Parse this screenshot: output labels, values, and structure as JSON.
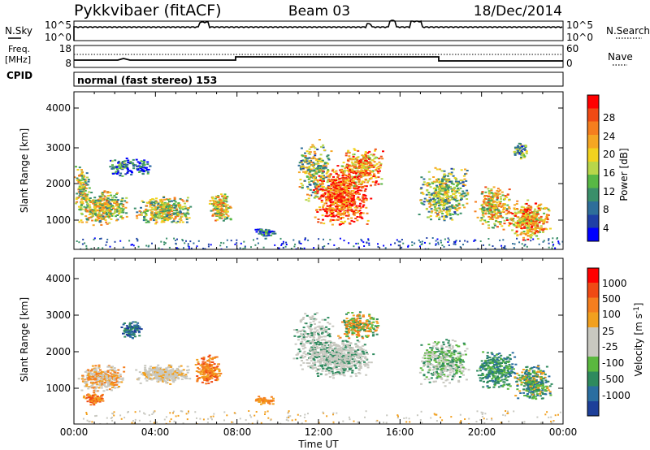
{
  "header": {
    "station": "Pykkvibaer (fitACF)",
    "beam": "Beam 03",
    "date": "18/Dec/2014"
  },
  "left_labels": {
    "nsky": "N.Sky",
    "freq": "Freq.",
    "mhz": "[MHz]",
    "cpid": "CPID"
  },
  "right_labels": {
    "nsearch": "N.Search",
    "nave": "Nave"
  },
  "cpid_text": "normal (fast stereo) 153",
  "colorbar_power": {
    "label": "Power [dB]",
    "ticks": [
      "28",
      "24",
      "20",
      "16",
      "12",
      "8",
      "4"
    ],
    "colors": [
      "#0000ff",
      "#1f3fa6",
      "#2e6e9a",
      "#3a8f6a",
      "#58b845",
      "#b8d64a",
      "#f2d21e",
      "#f5a623",
      "#f57e1e",
      "#f04a14",
      "#ff0000"
    ]
  },
  "colorbar_velocity": {
    "label": "Velocity [m s",
    "label_sup": "-1",
    "label_end": "]",
    "ticks": [
      "1000",
      "500",
      "100",
      "25",
      "-25",
      "-100",
      "-500",
      "-1000"
    ],
    "colors": [
      "#1d3f99",
      "#2a6ea0",
      "#2e8a5e",
      "#5ab83f",
      "#c8c8c0",
      "#c8c8c0",
      "#f2a01e",
      "#f57e1e",
      "#f04a14",
      "#ff0000"
    ]
  },
  "chart_data": [
    {
      "type": "line",
      "name": "noise-panel",
      "left_ticks": [
        "10^5",
        "10^0"
      ],
      "right_ticks": [
        "10^5",
        "10^0"
      ]
    },
    {
      "type": "line",
      "name": "freq-panel",
      "left_ticks": [
        "18",
        "8"
      ],
      "right_ticks": [
        "60",
        "0"
      ]
    },
    {
      "type": "heatmap",
      "name": "power-panel",
      "ylabel": "Slant Range [km]",
      "yticks": [
        "4000",
        "3000",
        "2000",
        "1000"
      ],
      "ylim": [
        200,
        4600
      ]
    },
    {
      "type": "heatmap",
      "name": "velocity-panel",
      "ylabel": "Slant Range [km]",
      "yticks": [
        "4000",
        "3000",
        "2000",
        "1000"
      ],
      "ylim": [
        200,
        4600
      ],
      "xlabel": "Time UT",
      "xticks": [
        "00:00",
        "04:00",
        "08:00",
        "12:00",
        "16:00",
        "20:00",
        "00:00"
      ]
    }
  ]
}
